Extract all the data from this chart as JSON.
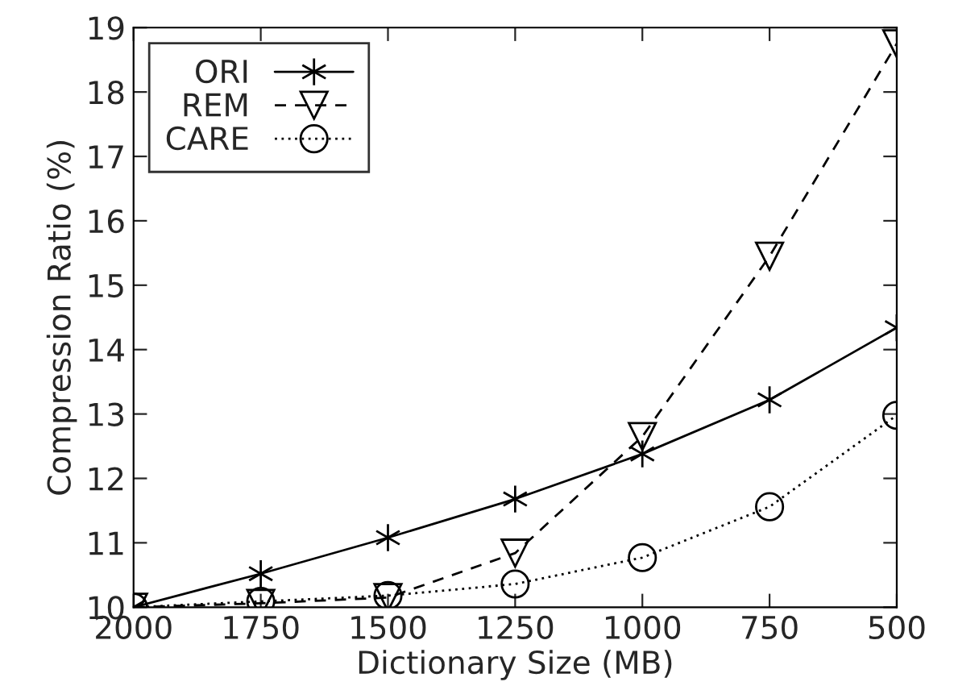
{
  "chart_data": {
    "type": "line",
    "xlabel": "Dictionary Size (MB)",
    "ylabel": "Compression Ratio (%)",
    "x": [
      2000,
      1750,
      1500,
      1250,
      1000,
      750,
      500
    ],
    "xlim": [
      2000,
      500
    ],
    "xticks": [
      2000,
      1750,
      1500,
      1250,
      1000,
      750,
      500
    ],
    "ylim": [
      10,
      19
    ],
    "yticks": [
      10,
      11,
      12,
      13,
      14,
      15,
      16,
      17,
      18,
      19
    ],
    "grid": false,
    "legend": "top left",
    "series": [
      {
        "name": "ORI",
        "color": "#000000",
        "marker": "cross",
        "line_style": "solid",
        "values": [
          10.0,
          10.52,
          11.08,
          11.68,
          12.38,
          13.22,
          14.34
        ]
      },
      {
        "name": "REM",
        "color": "#000000",
        "marker": "triangle",
        "line_style": "dashed",
        "values": [
          10.0,
          10.06,
          10.15,
          10.84,
          12.65,
          15.45,
          18.75
        ]
      },
      {
        "name": "CARE",
        "color": "#000000",
        "marker": "circle",
        "line_style": "dotted",
        "values": [
          10.0,
          10.09,
          10.18,
          10.36,
          10.77,
          11.56,
          12.98
        ]
      }
    ]
  }
}
